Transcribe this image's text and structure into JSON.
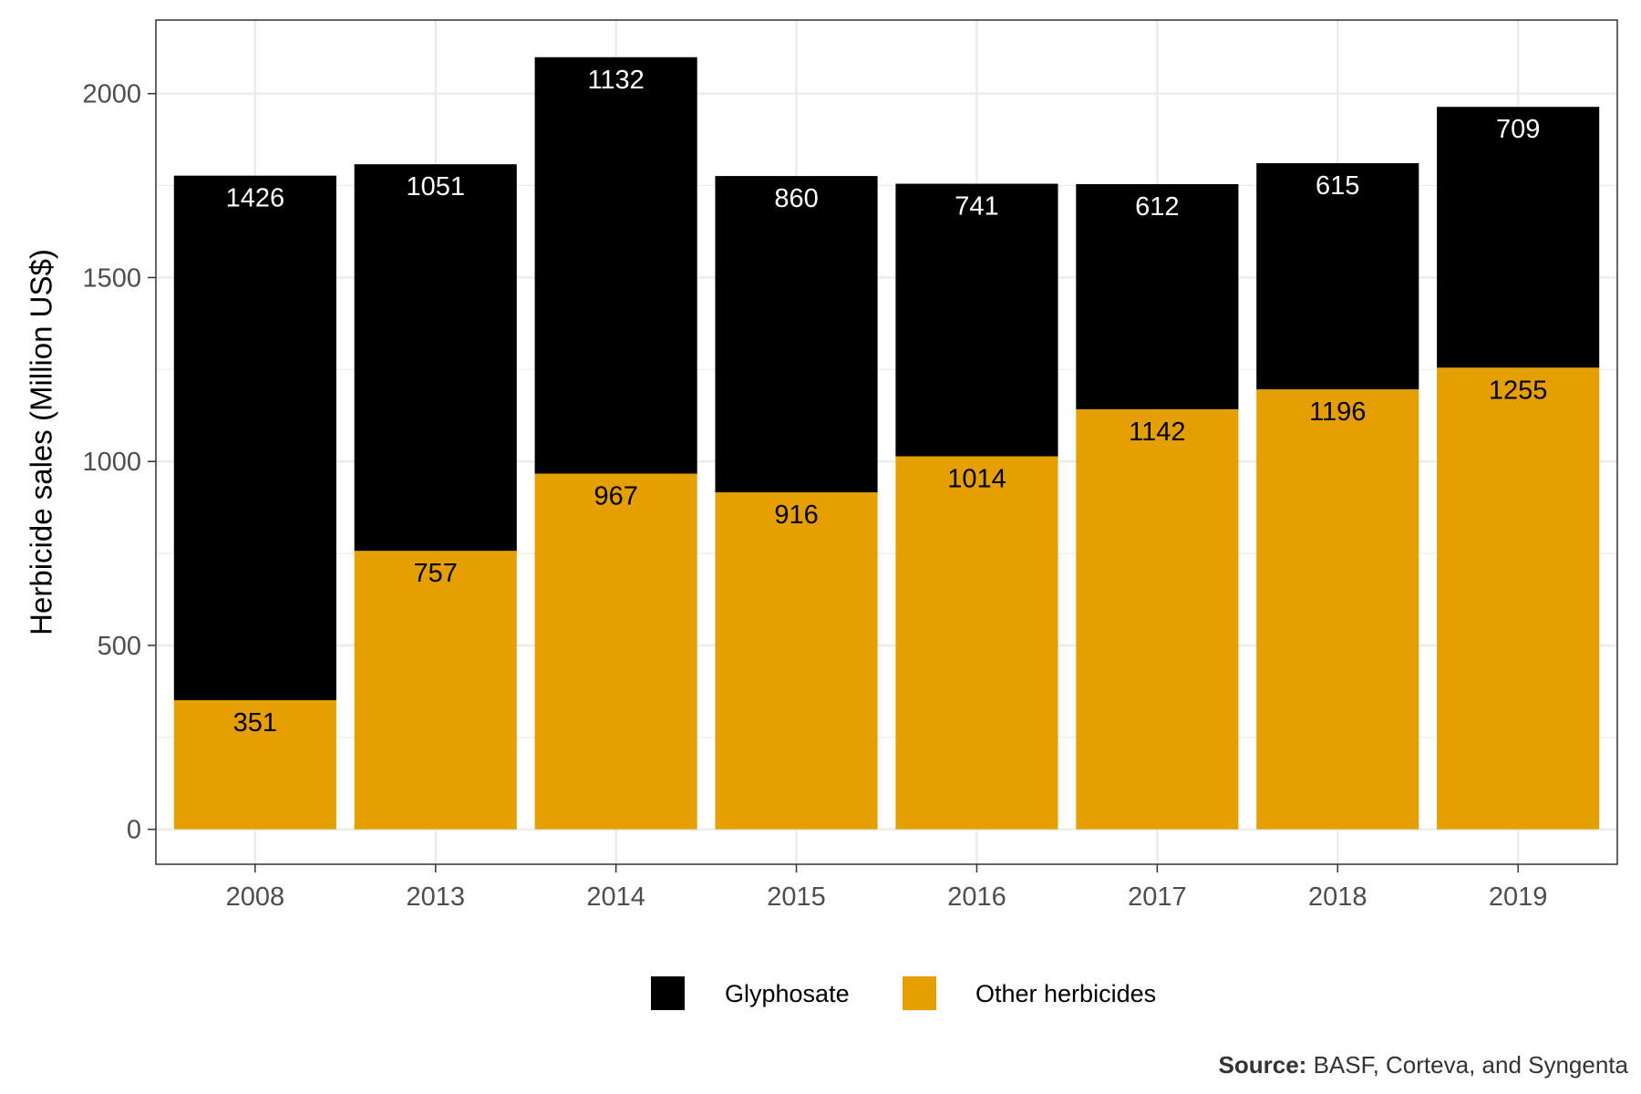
{
  "chart_data": {
    "type": "bar",
    "stacked": true,
    "categories": [
      "2008",
      "2013",
      "2014",
      "2015",
      "2016",
      "2017",
      "2018",
      "2019"
    ],
    "series": [
      {
        "name": "Other herbicides",
        "values": [
          351,
          757,
          967,
          916,
          1014,
          1142,
          1196,
          1255
        ]
      },
      {
        "name": "Glyphosate",
        "values": [
          1426,
          1051,
          1132,
          860,
          741,
          612,
          615,
          709
        ]
      }
    ],
    "ylabel": "Herbicide sales (Million US$)",
    "xlabel": "",
    "ylim": [
      -95,
      2200
    ],
    "yticks": [
      0,
      500,
      1000,
      1500,
      2000
    ],
    "grid": true,
    "legend_position": "bottom",
    "legend_order": [
      "Glyphosate",
      "Other herbicides"
    ],
    "colors": {
      "Glyphosate": "#000000",
      "Other herbicides": "#E69F00"
    },
    "label_colors": {
      "Glyphosate": "#ffffff",
      "Other herbicides": "#000000"
    }
  },
  "source": {
    "label": "Source:",
    "text": "BASF, Corteva, and Syngenta"
  }
}
